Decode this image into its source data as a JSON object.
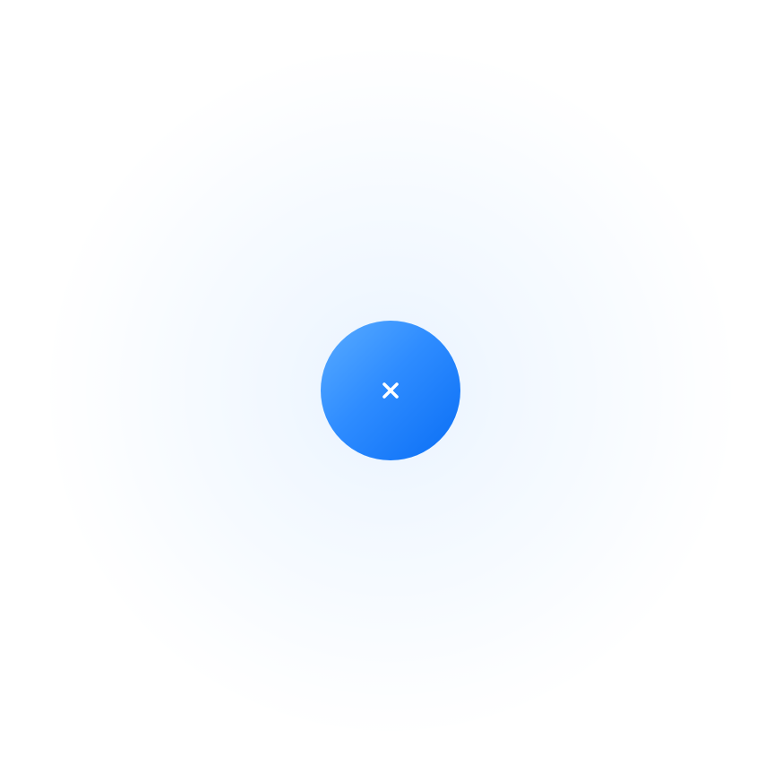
{
  "button": {
    "icon": "close-icon",
    "accent_color": "#007AFF",
    "gradient_start": "#5AACFF",
    "gradient_end": "#0A6EF5",
    "icon_color": "#FFFFFF"
  }
}
